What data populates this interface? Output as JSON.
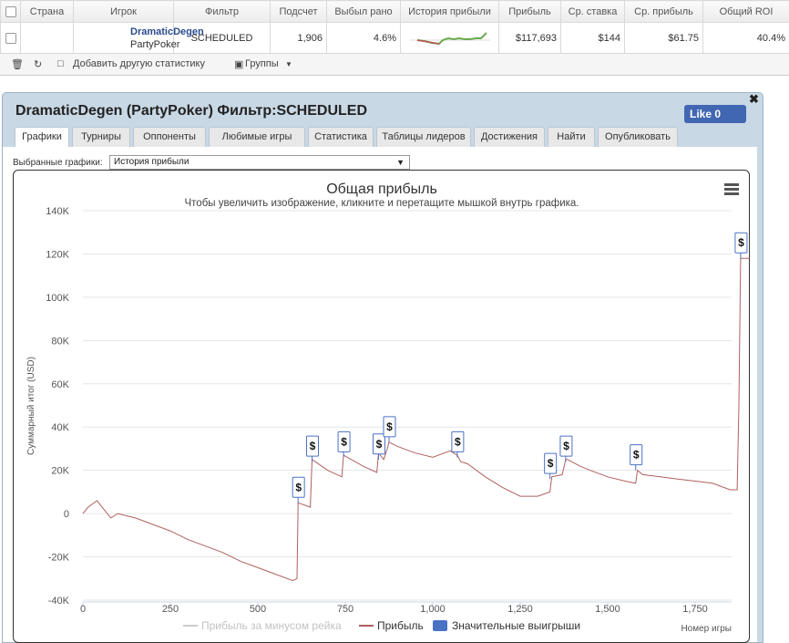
{
  "table": {
    "headers": [
      "Страна",
      "Игрок",
      "Фильтр",
      "Подсчет",
      "Выбыл рано",
      "История прибыли",
      "Прибыль",
      "Ср. ставка",
      "Ср. прибыль",
      "Общий ROI"
    ],
    "row": {
      "player": "DramaticDegen",
      "site": "PartyPoker",
      "filter": "SCHEDULED",
      "count": "1,906",
      "early": "4.6%",
      "profit": "$117,693",
      "avg_stake": "$144",
      "avg_profit": "$61.75",
      "roi": "40.4%"
    }
  },
  "toolbar": {
    "add_stat": "Добавить другую статистику",
    "groups": "Группы"
  },
  "popup": {
    "title": "DramaticDegen (PartyPoker) Фильтр:SCHEDULED",
    "like": "Like 0",
    "tabs": [
      "Графики",
      "Турниры",
      "Оппоненты",
      "Любимые игры",
      "Статистика",
      "Таблицы лидеров",
      "Достижения",
      "Найти",
      "Опубликовать"
    ],
    "active_tab": "Графики",
    "selector_label": "Выбранные графики:",
    "selector_value": "История прибыли"
  },
  "chart_data": {
    "type": "line",
    "title": "Общая прибыль",
    "subtitle": "Чтобы увеличить изображение, кликните и перетащите мышкой внутрь графика.",
    "xlabel": "Номер игры",
    "ylabel": "Суммарный итог (USD)",
    "xlim": [
      0,
      1906
    ],
    "ylim": [
      -40000,
      140000
    ],
    "x_ticks": [
      0,
      250,
      500,
      750,
      1000,
      1250,
      1500,
      1750
    ],
    "x_tick_labels": [
      "0",
      "250",
      "500",
      "750",
      "1,000",
      "1,250",
      "1,500",
      "1,750"
    ],
    "y_ticks": [
      -40000,
      -20000,
      0,
      20000,
      40000,
      60000,
      80000,
      100000,
      120000,
      140000
    ],
    "y_tick_labels": [
      "-40K",
      "-20K",
      "0",
      "20K",
      "40K",
      "60K",
      "80K",
      "100K",
      "120K",
      "140K"
    ],
    "legend": [
      "Прибыль за минусом рейка",
      "Прибыль",
      "Значительные выигрыши"
    ],
    "legend_position": "bottom",
    "grid": true,
    "series": [
      {
        "name": "Прибыль",
        "color": "#b06060",
        "x": [
          0,
          15,
          40,
          60,
          80,
          100,
          150,
          200,
          250,
          300,
          350,
          400,
          450,
          500,
          550,
          600,
          612,
          615,
          650,
          655,
          700,
          740,
          745,
          800,
          840,
          845,
          860,
          870,
          875,
          900,
          950,
          1000,
          1050,
          1070,
          1080,
          1100,
          1150,
          1200,
          1250,
          1300,
          1335,
          1340,
          1370,
          1380,
          1385,
          1420,
          1450,
          1500,
          1550,
          1580,
          1585,
          1600,
          1650,
          1700,
          1750,
          1800,
          1850,
          1870,
          1875,
          1880,
          1890,
          1906
        ],
        "y": [
          0,
          3000,
          6000,
          2000,
          -2000,
          0,
          -2000,
          -5000,
          -8000,
          -12000,
          -15000,
          -18000,
          -22000,
          -25000,
          -28000,
          -31000,
          -30000,
          5000,
          3000,
          25000,
          20000,
          17000,
          27000,
          22000,
          19000,
          28000,
          25000,
          30000,
          33000,
          31000,
          28000,
          26000,
          29000,
          27000,
          24000,
          23000,
          17000,
          12000,
          8000,
          8000,
          10000,
          17000,
          18000,
          25000,
          25000,
          22000,
          20000,
          17000,
          15000,
          14000,
          20000,
          18000,
          17000,
          16000,
          15000,
          14000,
          11000,
          11000,
          50000,
          118000,
          118000,
          118000
        ]
      },
      {
        "name": "Прибыль за минусом рейка",
        "color": "#dddddd",
        "x": [],
        "y": []
      }
    ],
    "big_wins": {
      "name": "Значительные выигрыши",
      "label": "$",
      "x": [
        615,
        655,
        745,
        845,
        875,
        1070,
        1335,
        1380,
        1580,
        1880
      ],
      "y": [
        5000,
        24000,
        26000,
        25000,
        33000,
        26000,
        16000,
        24000,
        20000,
        118000
      ]
    }
  }
}
